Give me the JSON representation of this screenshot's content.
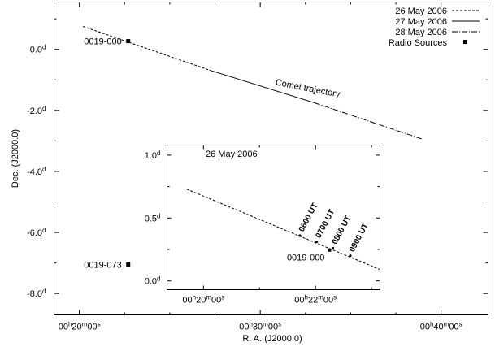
{
  "chart_data": [
    {
      "id": "main",
      "type": "line",
      "xlabel": "R. A. (J2000.0)",
      "ylabel": "Dec. (J2000.0)",
      "xlim": [
        18.6,
        42.6
      ],
      "ylim": [
        -8.7,
        1.55
      ],
      "x_ticks": [
        {
          "value": 20,
          "label": [
            "00",
            "h",
            "20",
            "m",
            "00",
            "s"
          ]
        },
        {
          "value": 30,
          "label": [
            "00",
            "h",
            "30",
            "m",
            "00",
            "s"
          ]
        },
        {
          "value": 40,
          "label": [
            "00",
            "h",
            "40",
            "m",
            "00",
            "s"
          ]
        }
      ],
      "x_minor_ticks": [
        22.5,
        25,
        27.5,
        32.5,
        35,
        37.5
      ],
      "y_ticks": [
        {
          "value": 0,
          "label": [
            "0.0",
            "d"
          ]
        },
        {
          "value": -2,
          "label": [
            "-2.0",
            "d"
          ]
        },
        {
          "value": -4,
          "label": [
            "-4.0",
            "d"
          ]
        },
        {
          "value": -6,
          "label": [
            "-6.0",
            "d"
          ]
        },
        {
          "value": -8,
          "label": [
            "-8.0",
            "d"
          ]
        }
      ],
      "y_minor_ticks": [
        1,
        -1,
        -3,
        -5,
        -7
      ],
      "series": [
        {
          "name": "26 May 2006",
          "style": "dashed",
          "points": [
            [
              20.2,
              0.75
            ],
            [
              27.2,
              -0.68
            ]
          ]
        },
        {
          "name": "27 May 2006",
          "style": "solid",
          "points": [
            [
              27.2,
              -0.68
            ],
            [
              33.0,
              -1.75
            ]
          ]
        },
        {
          "name": "28 May 2006",
          "style": "dashdot",
          "points": [
            [
              33.0,
              -1.75
            ],
            [
              39.0,
              -2.95
            ]
          ]
        }
      ],
      "radio_sources_name": "Radio Sources",
      "radio_sources": [
        {
          "label": "0019-000",
          "x": 22.7,
          "y": 0.27
        },
        {
          "label": "0019-073",
          "x": 22.7,
          "y": -7.05
        }
      ],
      "annotations": [
        {
          "text": "Comet trajectory",
          "x": 31.3,
          "y": -1.15
        }
      ],
      "legend": "top-right"
    },
    {
      "id": "inset",
      "type": "line",
      "title": "26 May 2006",
      "xlim": [
        19.35,
        23.15
      ],
      "ylim": [
        -0.07,
        1.08
      ],
      "x_ticks": [
        {
          "value": 20,
          "label": [
            "00",
            "h",
            "20",
            "m",
            "00",
            "s"
          ]
        },
        {
          "value": 22,
          "label": [
            "00",
            "h",
            "22",
            "m",
            "00",
            "s"
          ]
        }
      ],
      "x_minor_ticks": [
        21,
        23
      ],
      "y_ticks": [
        {
          "value": 0,
          "label": [
            "0.0",
            "d"
          ]
        },
        {
          "value": 0.5,
          "label": [
            "0.5",
            "d"
          ]
        },
        {
          "value": 1,
          "label": [
            "1.0",
            "d"
          ]
        }
      ],
      "y_minor_ticks": [
        0.25,
        0.75
      ],
      "series": [
        {
          "name": "26 May 2006",
          "style": "dashed",
          "points": [
            [
              19.7,
              0.73
            ],
            [
              23.15,
              0.09
            ]
          ]
        }
      ],
      "time_marks": [
        {
          "label": "0600 UT",
          "x": 21.72,
          "y": 0.36
        },
        {
          "label": "0700 UT",
          "x": 22.02,
          "y": 0.31
        },
        {
          "label": "0800 UT",
          "x": 22.31,
          "y": 0.26
        },
        {
          "label": "0900 UT",
          "x": 22.62,
          "y": 0.2
        }
      ],
      "radio_sources": [
        {
          "label": "0019-000",
          "x": 22.25,
          "y": 0.245
        }
      ]
    }
  ]
}
